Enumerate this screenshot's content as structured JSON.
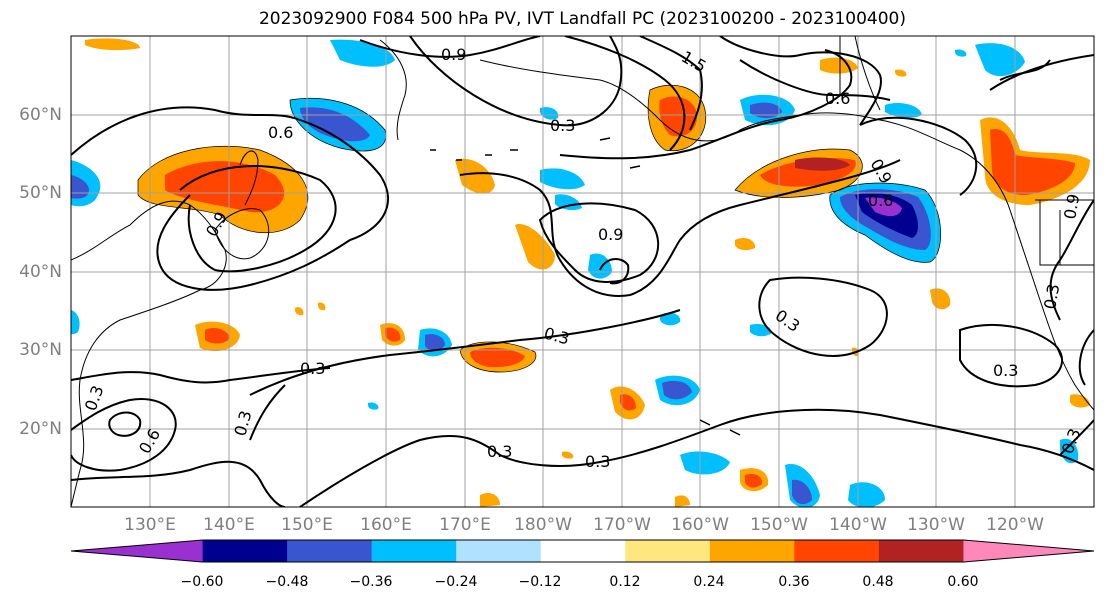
{
  "title": "2023092900 F084 500 hPa PV, IVT Landfall PC (2023100200 - 2023100400)",
  "lat_labels": [
    "60°N",
    "50°N",
    "40°N",
    "30°N",
    "20°N"
  ],
  "lon_labels": [
    "130°E",
    "140°E",
    "150°E",
    "160°E",
    "170°E",
    "180°W",
    "170°W",
    "160°W",
    "150°W",
    "140°W",
    "130°W",
    "120°W"
  ],
  "contour_labels": [
    "0.9",
    "1.5",
    "0.6",
    "0.3",
    "0.9",
    "0.6",
    "0.9",
    "0.9",
    "0.6",
    "0.3",
    "0.3",
    "0.3",
    "0.3",
    "0.6",
    "0.3",
    "0.3",
    "0.3",
    "0.3",
    "0.3",
    "0.9",
    "0.3"
  ],
  "colorbar": {
    "ticks": [
      "−0.60",
      "−0.48",
      "−0.36",
      "−0.24",
      "−0.12",
      "0.12",
      "0.24",
      "0.36",
      "0.48",
      "0.60"
    ],
    "colors": [
      "#9b30d0",
      "#000090",
      "#3a55d0",
      "#00bfff",
      "#b0e2ff",
      "#ffffff",
      "#fee77f",
      "#ffa500",
      "#ff4500",
      "#b22222",
      "#ff88bb"
    ]
  }
}
